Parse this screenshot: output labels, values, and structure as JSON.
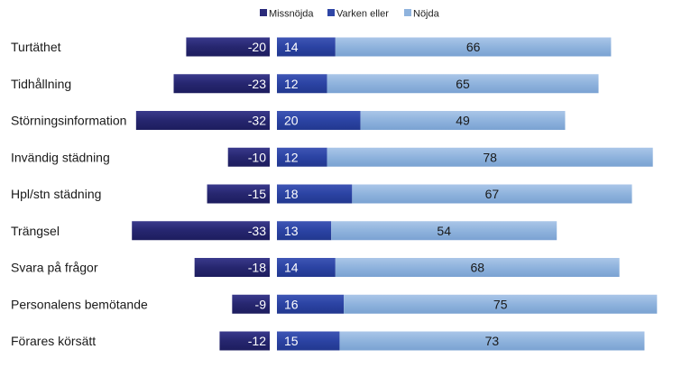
{
  "chart_data": {
    "type": "bar",
    "stacked": true,
    "orientation": "horizontal",
    "legend_position": "top",
    "grid": false,
    "categories": [
      "Turtäthet",
      "Tidhållning",
      "Störningsinformation",
      "Invändig städning",
      "Hpl/stn städning",
      "Trängsel",
      "Svara på frågor",
      "Personalens bemötande",
      "Förares körsätt"
    ],
    "series": [
      {
        "name": "Missnöjda",
        "color": "#2a2a7a",
        "values": [
          -20,
          -23,
          -32,
          -10,
          -15,
          -33,
          -18,
          -9,
          -12
        ]
      },
      {
        "name": "Varken eller",
        "color": "#2e45a5",
        "values": [
          14,
          12,
          20,
          12,
          18,
          13,
          14,
          16,
          15
        ]
      },
      {
        "name": "Nöjda",
        "color": "#8fb3dd",
        "values": [
          66,
          65,
          49,
          78,
          67,
          54,
          68,
          75,
          73
        ]
      }
    ]
  }
}
